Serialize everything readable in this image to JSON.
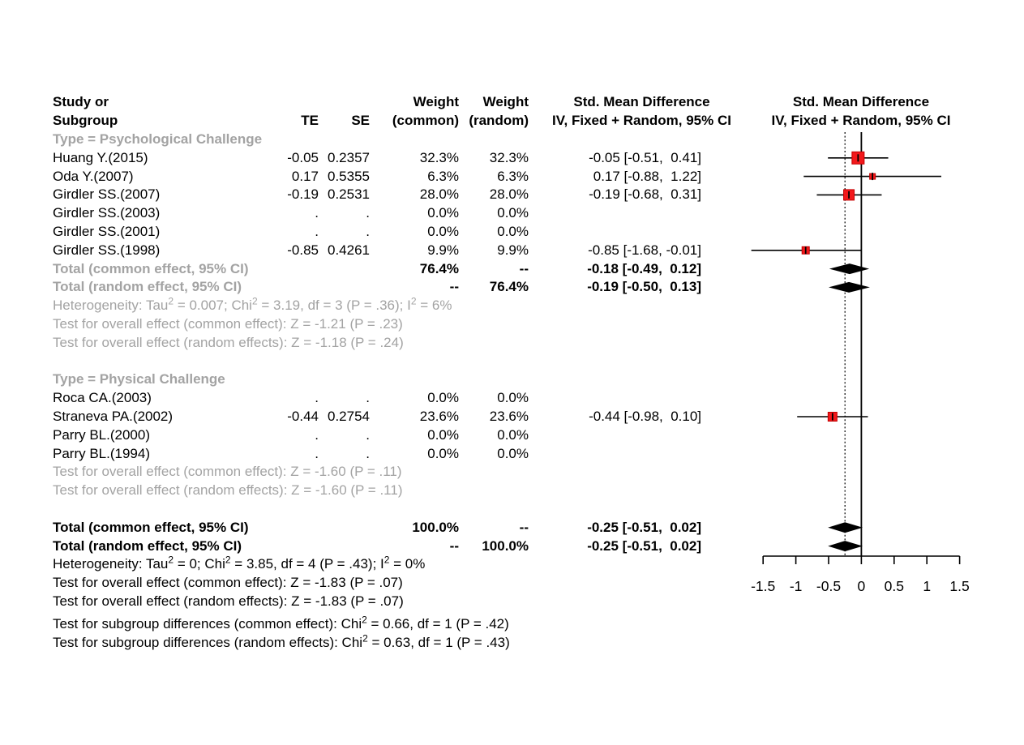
{
  "header": {
    "col_study_line1": "Study or",
    "col_study_line2": "Subgroup",
    "col_te": "TE",
    "col_se": "SE",
    "col_w_common_line1": "Weight",
    "col_w_common_line2": "(common)",
    "col_w_random_line1": "Weight",
    "col_w_random_line2": "(random)",
    "col_smd_line1": "Std. Mean Difference",
    "col_smd_line2": "IV, Fixed + Random, 95% CI",
    "col_plot_line1": "Std. Mean Difference",
    "col_plot_line2": "IV, Fixed + Random, 95% CI"
  },
  "chart_data": {
    "type": "forest",
    "effect_measure": "Std. Mean Difference",
    "model": "IV, Fixed + Random, 95% CI",
    "colors": {
      "marker": "#f2181b",
      "marker_border": "#c40000",
      "diamond": "#000000",
      "gray_text": "#a3a3a3",
      "line": "#000000"
    },
    "axis": {
      "min": -1.5,
      "max": 1.5,
      "tick_values": [
        -1.5,
        -1,
        -0.5,
        0,
        0.5,
        1,
        1.5
      ],
      "ticks": [
        "-1.5",
        "-1",
        "-0.5",
        "0",
        "0.5",
        "1",
        "1.5"
      ],
      "zero_line": 0,
      "pooled_line": -0.25,
      "pooled_line_style": "dashed"
    },
    "rows": [
      {
        "type": "subgroup-header",
        "label": "Type = Psychological Challenge"
      },
      {
        "type": "study",
        "label": "Huang Y.(2015)",
        "te": "-0.05",
        "se": "0.2357",
        "w_common": "32.3%",
        "w_random": "32.3%",
        "smd": "-0.05 [-0.51,  0.41]",
        "est": -0.05,
        "lo": -0.51,
        "hi": 0.41,
        "size": 15
      },
      {
        "type": "study",
        "label": "Oda Y.(2007)",
        "te": "0.17",
        "se": "0.5355",
        "w_common": "6.3%",
        "w_random": "6.3%",
        "smd": "0.17 [-0.88,  1.22]",
        "est": 0.17,
        "lo": -0.88,
        "hi": 1.22,
        "size": 7
      },
      {
        "type": "study",
        "label": "Girdler SS.(2007)",
        "te": "-0.19",
        "se": "0.2531",
        "w_common": "28.0%",
        "w_random": "28.0%",
        "smd": "-0.19 [-0.68,  0.31]",
        "est": -0.19,
        "lo": -0.68,
        "hi": 0.31,
        "size": 13
      },
      {
        "type": "study",
        "label": "Girdler SS.(2003)",
        "te": ".",
        "se": ".",
        "w_common": "0.0%",
        "w_random": "0.0%"
      },
      {
        "type": "study",
        "label": "Girdler SS.(2001)",
        "te": ".",
        "se": ".",
        "w_common": "0.0%",
        "w_random": "0.0%"
      },
      {
        "type": "study",
        "label": "Girdler SS.(1998)",
        "te": "-0.85",
        "se": "0.4261",
        "w_common": "9.9%",
        "w_random": "9.9%",
        "smd": "-0.85 [-1.68, -0.01]",
        "est": -0.85,
        "lo": -1.68,
        "hi": -0.01,
        "size": 9
      },
      {
        "type": "subtotal",
        "label": "Total (common effect, 95% CI)",
        "w_common": "76.4%",
        "w_random": "--",
        "smd": "-0.18 [-0.49,  0.12]",
        "est": -0.18,
        "lo": -0.49,
        "hi": 0.12,
        "marker": "diamond"
      },
      {
        "type": "subtotal",
        "label": "Total (random effect, 95% CI)",
        "w_common": "--",
        "w_random": "76.4%",
        "smd": "-0.19 [-0.50,  0.13]",
        "est": -0.19,
        "lo": -0.5,
        "hi": 0.13,
        "marker": "diamond"
      },
      {
        "type": "note-gray",
        "label": "Heterogeneity: Tau² = 0.007; Chi² = 3.19, df = 3 (P = .36); I² = 6%"
      },
      {
        "type": "note-gray",
        "label": "Test for overall effect (common effect): Z = -1.21 (P = .23)"
      },
      {
        "type": "note-gray",
        "label": "Test for overall effect (random effects): Z = -1.18 (P = .24)"
      },
      {
        "type": "spacer"
      },
      {
        "type": "subgroup-header",
        "label": "Type = Physical Challenge"
      },
      {
        "type": "study",
        "label": "Roca CA.(2003)",
        "te": ".",
        "se": ".",
        "w_common": "0.0%",
        "w_random": "0.0%"
      },
      {
        "type": "study",
        "label": "Straneva PA.(2002)",
        "te": "-0.44",
        "se": "0.2754",
        "w_common": "23.6%",
        "w_random": "23.6%",
        "smd": "-0.44 [-0.98,  0.10]",
        "est": -0.44,
        "lo": -0.98,
        "hi": 0.1,
        "size": 11
      },
      {
        "type": "study",
        "label": "Parry BL.(2000)",
        "te": ".",
        "se": ".",
        "w_common": "0.0%",
        "w_random": "0.0%"
      },
      {
        "type": "study",
        "label": "Parry BL.(1994)",
        "te": ".",
        "se": ".",
        "w_common": "0.0%",
        "w_random": "0.0%"
      },
      {
        "type": "note-gray",
        "label": "Test for overall effect (common effect): Z = -1.60 (P = .11)"
      },
      {
        "type": "note-gray",
        "label": "Test for overall effect (random effects): Z = -1.60 (P = .11)"
      },
      {
        "type": "spacer"
      },
      {
        "type": "total",
        "label": "Total (common effect, 95% CI)",
        "w_common": "100.0%",
        "w_random": "--",
        "smd": "-0.25 [-0.51,  0.02]",
        "est": -0.25,
        "lo": -0.51,
        "hi": 0.02,
        "marker": "diamond"
      },
      {
        "type": "total",
        "label": "Total (random effect, 95% CI)",
        "w_common": "--",
        "w_random": "100.0%",
        "smd": "-0.25 [-0.51,  0.02]",
        "est": -0.25,
        "lo": -0.51,
        "hi": 0.02,
        "marker": "diamond"
      },
      {
        "type": "note-black",
        "label": "Heterogeneity: Tau² = 0; Chi² = 3.85, df = 4 (P = .43); I² = 0%"
      },
      {
        "type": "note-black",
        "label": "Test for overall effect (common effect): Z = -1.83 (P = .07)"
      },
      {
        "type": "note-black",
        "label": "Test for overall effect (random effects): Z = -1.83 (P = .07)"
      },
      {
        "type": "note-black",
        "label": "Test for subgroup differences (common effect): Chi² = 0.66, df = 1 (P = .42)",
        "extra_gap": 5
      },
      {
        "type": "note-black",
        "label": "Test for subgroup differences (random effects): Chi² = 0.63, df = 1 (P = .43)"
      }
    ]
  }
}
